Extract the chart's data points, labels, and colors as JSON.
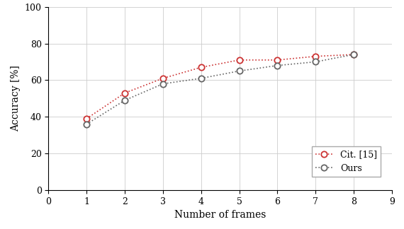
{
  "x": [
    1,
    2,
    3,
    4,
    5,
    6,
    7,
    8
  ],
  "cit15_y": [
    39,
    53,
    61,
    67,
    71,
    71,
    73,
    74
  ],
  "ours_y": [
    36,
    49,
    58,
    61,
    65,
    68,
    70,
    74
  ],
  "cit15_color": "#cc3333",
  "ours_color": "#666666",
  "cit15_label": "Cit. [15]",
  "ours_label": "Ours",
  "xlabel": "Number of frames",
  "ylabel": "Accuracy [%]",
  "xlim": [
    0,
    9
  ],
  "ylim": [
    0,
    100
  ],
  "xticks": [
    0,
    1,
    2,
    3,
    4,
    5,
    6,
    7,
    8,
    9
  ],
  "yticks": [
    0,
    20,
    40,
    60,
    80,
    100
  ],
  "grid_color": "#cccccc",
  "marker_size": 6,
  "line_width": 1.2,
  "background_color": "#ffffff"
}
